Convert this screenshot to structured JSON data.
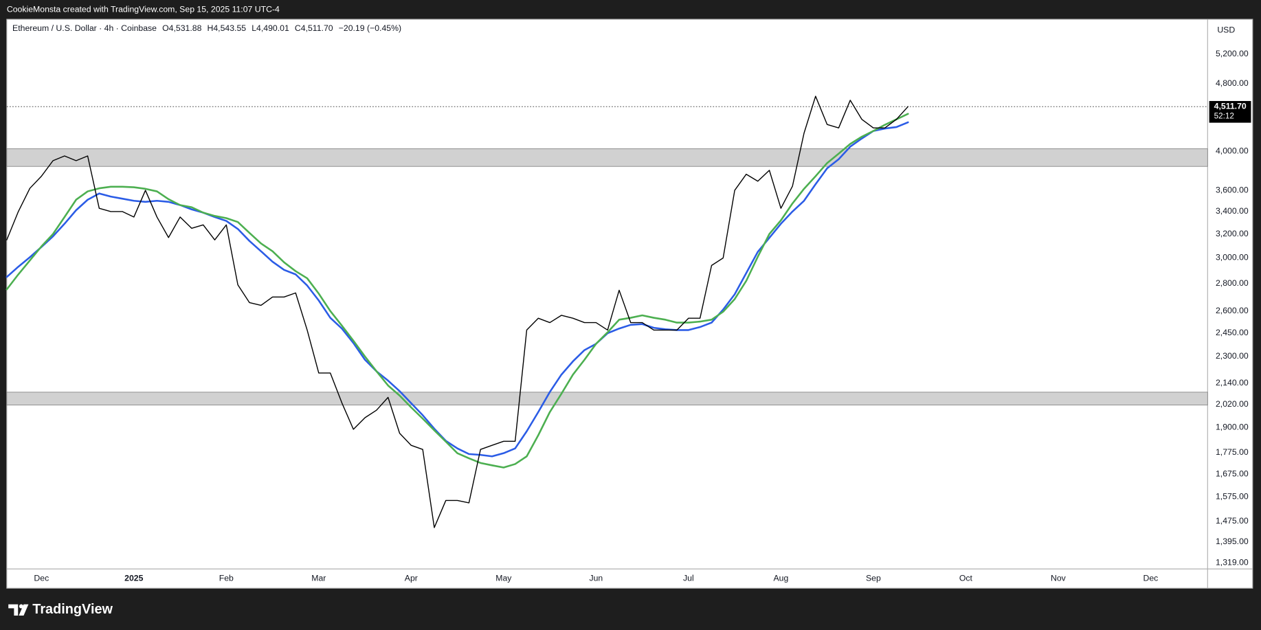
{
  "header": {
    "credit": "CookieMonsta created with TradingView.com, Sep 15, 2025 11:07 UTC-4"
  },
  "footer": {
    "brand": "TradingView"
  },
  "chart_data": {
    "type": "line",
    "legend": {
      "symbol": "Ethereum / U.S. Dollar · 4h · Coinbase",
      "open": "O4,531.88",
      "high": "H4,543.55",
      "low": "L4,490.01",
      "close": "C4,511.70",
      "change": "−20.19 (−0.45%)"
    },
    "y_unit": "USD",
    "log_scale": true,
    "grid": false,
    "ylim": [
      1297,
      5710
    ],
    "yticks": [
      {
        "value": 5200,
        "label": "5,200.00"
      },
      {
        "value": 4800,
        "label": "4,800.00"
      },
      {
        "value": 4000,
        "label": "4,000.00"
      },
      {
        "value": 3600,
        "label": "3,600.00"
      },
      {
        "value": 3400,
        "label": "3,400.00"
      },
      {
        "value": 3200,
        "label": "3,200.00"
      },
      {
        "value": 3000,
        "label": "3,000.00"
      },
      {
        "value": 2800,
        "label": "2,800.00"
      },
      {
        "value": 2600,
        "label": "2,600.00"
      },
      {
        "value": 2450,
        "label": "2,450.00"
      },
      {
        "value": 2300,
        "label": "2,300.00"
      },
      {
        "value": 2140,
        "label": "2,140.00"
      },
      {
        "value": 2020,
        "label": "2,020.00"
      },
      {
        "value": 1900,
        "label": "1,900.00"
      },
      {
        "value": 1775,
        "label": "1,775.00"
      },
      {
        "value": 1675,
        "label": "1,675.00"
      },
      {
        "value": 1575,
        "label": "1,575.00"
      },
      {
        "value": 1475,
        "label": "1,475.00"
      },
      {
        "value": 1395,
        "label": "1,395.00"
      },
      {
        "value": 1319,
        "label": "1,319.00"
      }
    ],
    "categories": [
      null,
      null,
      null,
      "Dec",
      null,
      null,
      null,
      null,
      null,
      null,
      null,
      "2025",
      null,
      null,
      null,
      null,
      null,
      null,
      null,
      "Feb",
      null,
      null,
      null,
      null,
      null,
      null,
      null,
      "Mar",
      null,
      null,
      null,
      null,
      null,
      null,
      null,
      "Apr",
      null,
      null,
      null,
      null,
      null,
      null,
      null,
      "May",
      null,
      null,
      null,
      null,
      null,
      null,
      null,
      "Jun",
      null,
      null,
      null,
      null,
      null,
      null,
      null,
      "Jul",
      null,
      null,
      null,
      null,
      null,
      null,
      null,
      "Aug",
      null,
      null,
      null,
      null,
      null,
      null,
      null,
      "Sep",
      null,
      null,
      null,
      null,
      null,
      null,
      null,
      "Oct",
      null,
      null,
      null,
      null,
      null,
      null,
      null,
      "Nov",
      null,
      null,
      null,
      null,
      null,
      null,
      null,
      "Dec",
      null,
      null,
      null,
      null,
      null
    ],
    "series": [
      {
        "color": "#000000",
        "width": 1.2,
        "values": [
          3150,
          3400,
          3620,
          3740,
          3900,
          3950,
          3900,
          3950,
          3430,
          3400,
          3400,
          3350,
          3600,
          3350,
          3170,
          3350,
          3250,
          3280,
          3150,
          3280,
          2790,
          2660,
          2640,
          2700,
          2700,
          2730,
          2470,
          2200,
          2200,
          2030,
          1890,
          1950,
          1990,
          2060,
          1870,
          1810,
          1790,
          1450,
          1560,
          1560,
          1550,
          1790,
          1810,
          1830,
          1830,
          2470,
          2550,
          2520,
          2570,
          2550,
          2520,
          2520,
          2470,
          2750,
          2520,
          2520,
          2470,
          2470,
          2470,
          2550,
          2550,
          2940,
          3000,
          3600,
          3760,
          3690,
          3800,
          3430,
          3640,
          4200,
          4640,
          4300,
          4260,
          4590,
          4360,
          4260,
          4260,
          4360,
          4512,
          null,
          null,
          null,
          null,
          null,
          null,
          null,
          null,
          null,
          null,
          null,
          null,
          null,
          null,
          null,
          null,
          null,
          null,
          null,
          null,
          null,
          null,
          null,
          null,
          null,
          null
        ]
      },
      {
        "color": "#2b5ce6",
        "width": 2.2,
        "values": [
          2850,
          2930,
          3006,
          3090,
          3180,
          3290,
          3412,
          3510,
          3570,
          3540,
          3520,
          3500,
          3490,
          3500,
          3490,
          3460,
          3420,
          3390,
          3350,
          3315,
          3244,
          3141,
          3055,
          2970,
          2905,
          2870,
          2785,
          2675,
          2553,
          2480,
          2385,
          2280,
          2210,
          2155,
          2095,
          2028,
          1963,
          1893,
          1832,
          1795,
          1768,
          1764,
          1757,
          1772,
          1795,
          1880,
          1980,
          2090,
          2190,
          2270,
          2340,
          2380,
          2449,
          2480,
          2505,
          2510,
          2485,
          2475,
          2470,
          2470,
          2490,
          2520,
          2610,
          2720,
          2880,
          3050,
          3167,
          3290,
          3400,
          3500,
          3660,
          3820,
          3915,
          4050,
          4140,
          4225,
          4253,
          4270,
          4325,
          null,
          null,
          null,
          null,
          null,
          null,
          null,
          null,
          null,
          null,
          null,
          null,
          null,
          null,
          null,
          null,
          null,
          null,
          null,
          null,
          null,
          null,
          null,
          null,
          null,
          null
        ]
      },
      {
        "color": "#4caf50",
        "width": 2.2,
        "values": [
          2756,
          2870,
          2980,
          3095,
          3200,
          3350,
          3510,
          3590,
          3620,
          3635,
          3635,
          3630,
          3615,
          3590,
          3515,
          3460,
          3440,
          3390,
          3360,
          3340,
          3305,
          3210,
          3120,
          3055,
          2965,
          2895,
          2840,
          2725,
          2600,
          2500,
          2400,
          2300,
          2210,
          2127,
          2070,
          2005,
          1945,
          1885,
          1828,
          1772,
          1748,
          1726,
          1715,
          1705,
          1721,
          1757,
          1860,
          1980,
          2080,
          2190,
          2280,
          2380,
          2455,
          2540,
          2553,
          2570,
          2553,
          2540,
          2520,
          2520,
          2527,
          2540,
          2595,
          2685,
          2820,
          3010,
          3200,
          3320,
          3475,
          3615,
          3740,
          3875,
          3975,
          4080,
          4160,
          4225,
          4296,
          4360,
          4425,
          null,
          null,
          null,
          null,
          null,
          null,
          null,
          null,
          null,
          null,
          null,
          null,
          null,
          null,
          null,
          null,
          null,
          null,
          null,
          null,
          null,
          null,
          null,
          null,
          null,
          null
        ]
      }
    ],
    "zones": [
      {
        "from": 3840,
        "to": 4027
      },
      {
        "from": 2018,
        "to": 2089
      }
    ],
    "zone_color": "#d1d1d1",
    "last_price": {
      "value": 4511.7,
      "label": "4,511.70"
    },
    "countdown": "52:12"
  }
}
